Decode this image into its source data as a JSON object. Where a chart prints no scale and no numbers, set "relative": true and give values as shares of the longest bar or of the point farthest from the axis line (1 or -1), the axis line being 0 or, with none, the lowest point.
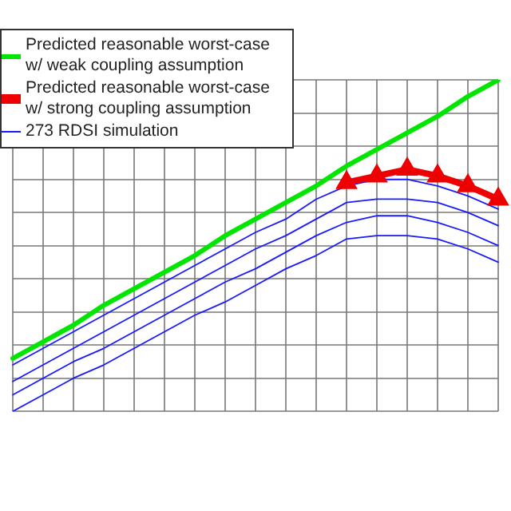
{
  "chart_data": {
    "type": "line",
    "relative": true,
    "grid": true,
    "legend": "top left",
    "categories": [
      null,
      null,
      null,
      null,
      null,
      null,
      null,
      null,
      null,
      null,
      null,
      null,
      null,
      null,
      null,
      null,
      null
    ],
    "series": [
      {
        "name": "Predicted reasonable worst-case w/ weak coupling assumption",
        "color": "#00e600",
        "marker": "none",
        "values": [
          0.16,
          0.21,
          0.26,
          0.32,
          0.37,
          0.42,
          0.47,
          0.53,
          0.58,
          0.63,
          0.68,
          0.74,
          0.79,
          0.84,
          0.89,
          0.95,
          1
        ]
      },
      {
        "name": "Predicted reasonable worst-case w/ strong coupling assumption",
        "color": "#ee0000",
        "marker": "triangle",
        "values": [
          null,
          null,
          null,
          null,
          null,
          null,
          null,
          null,
          null,
          null,
          null,
          0.69,
          0.71,
          0.73,
          0.71,
          0.68,
          0.64
        ]
      },
      {
        "name": "273 RDSI simulation",
        "color": "#1a1aff",
        "marker": "none",
        "values": [
          0.14,
          0.19,
          0.24,
          0.29,
          0.34,
          0.39,
          0.44,
          0.49,
          0.54,
          0.58,
          0.64,
          0.68,
          0.7,
          0.7,
          0.68,
          0.65,
          0.61
        ]
      },
      {
        "color": "#1a1aff",
        "marker": "none",
        "values": [
          0.09,
          0.14,
          0.19,
          0.24,
          0.29,
          0.34,
          0.39,
          0.44,
          0.49,
          0.53,
          0.58,
          0.63,
          0.64,
          0.64,
          0.63,
          0.6,
          0.56
        ]
      },
      {
        "color": "#1a1aff",
        "marker": "none",
        "values": [
          0.05,
          0.1,
          0.15,
          0.19,
          0.24,
          0.29,
          0.34,
          0.39,
          0.43,
          0.48,
          0.53,
          0.57,
          0.59,
          0.59,
          0.57,
          0.54,
          0.5
        ]
      },
      {
        "color": "#1a1aff",
        "marker": "none",
        "values": [
          0,
          0.05,
          0.1,
          0.14,
          0.19,
          0.24,
          0.29,
          0.33,
          0.38,
          0.43,
          0.47,
          0.52,
          0.53,
          0.53,
          0.52,
          0.49,
          0.45
        ]
      }
    ]
  }
}
